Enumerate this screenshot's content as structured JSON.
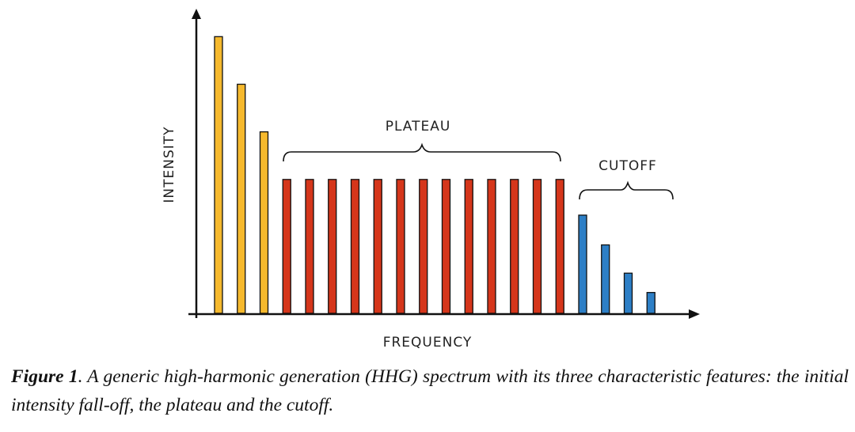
{
  "chart_data": {
    "type": "bar",
    "xlabel": "FREQUENCY",
    "ylabel": "INTENSITY",
    "categories": [
      null,
      null,
      null,
      null,
      null,
      null,
      null,
      null,
      null,
      null,
      null,
      null,
      null,
      null,
      null,
      null,
      null,
      null,
      null,
      null
    ],
    "values": [
      93,
      77,
      61,
      45,
      45,
      45,
      45,
      45,
      45,
      45,
      45,
      45,
      45,
      45,
      45,
      45,
      33,
      23,
      13.5,
      7
    ],
    "colors": [
      "#f6b92d",
      "#f6b92d",
      "#f6b92d",
      "#d5361b",
      "#d5361b",
      "#d5361b",
      "#d5361b",
      "#d5361b",
      "#d5361b",
      "#d5361b",
      "#d5361b",
      "#d5361b",
      "#d5361b",
      "#d5361b",
      "#d5361b",
      "#d5361b",
      "#2d7fc6",
      "#2d7fc6",
      "#2d7fc6",
      "#2d7fc6"
    ],
    "ylim": [
      0,
      100
    ],
    "annotations": [
      {
        "text": "PLATEAU"
      },
      {
        "text": "CUTOFF"
      }
    ]
  },
  "caption": {
    "label": "Figure 1",
    "text": ". A generic high-harmonic generation (HHG) spectrum with its three characteristic features: the initial intensity fall-off, the plateau and the cutoff."
  }
}
